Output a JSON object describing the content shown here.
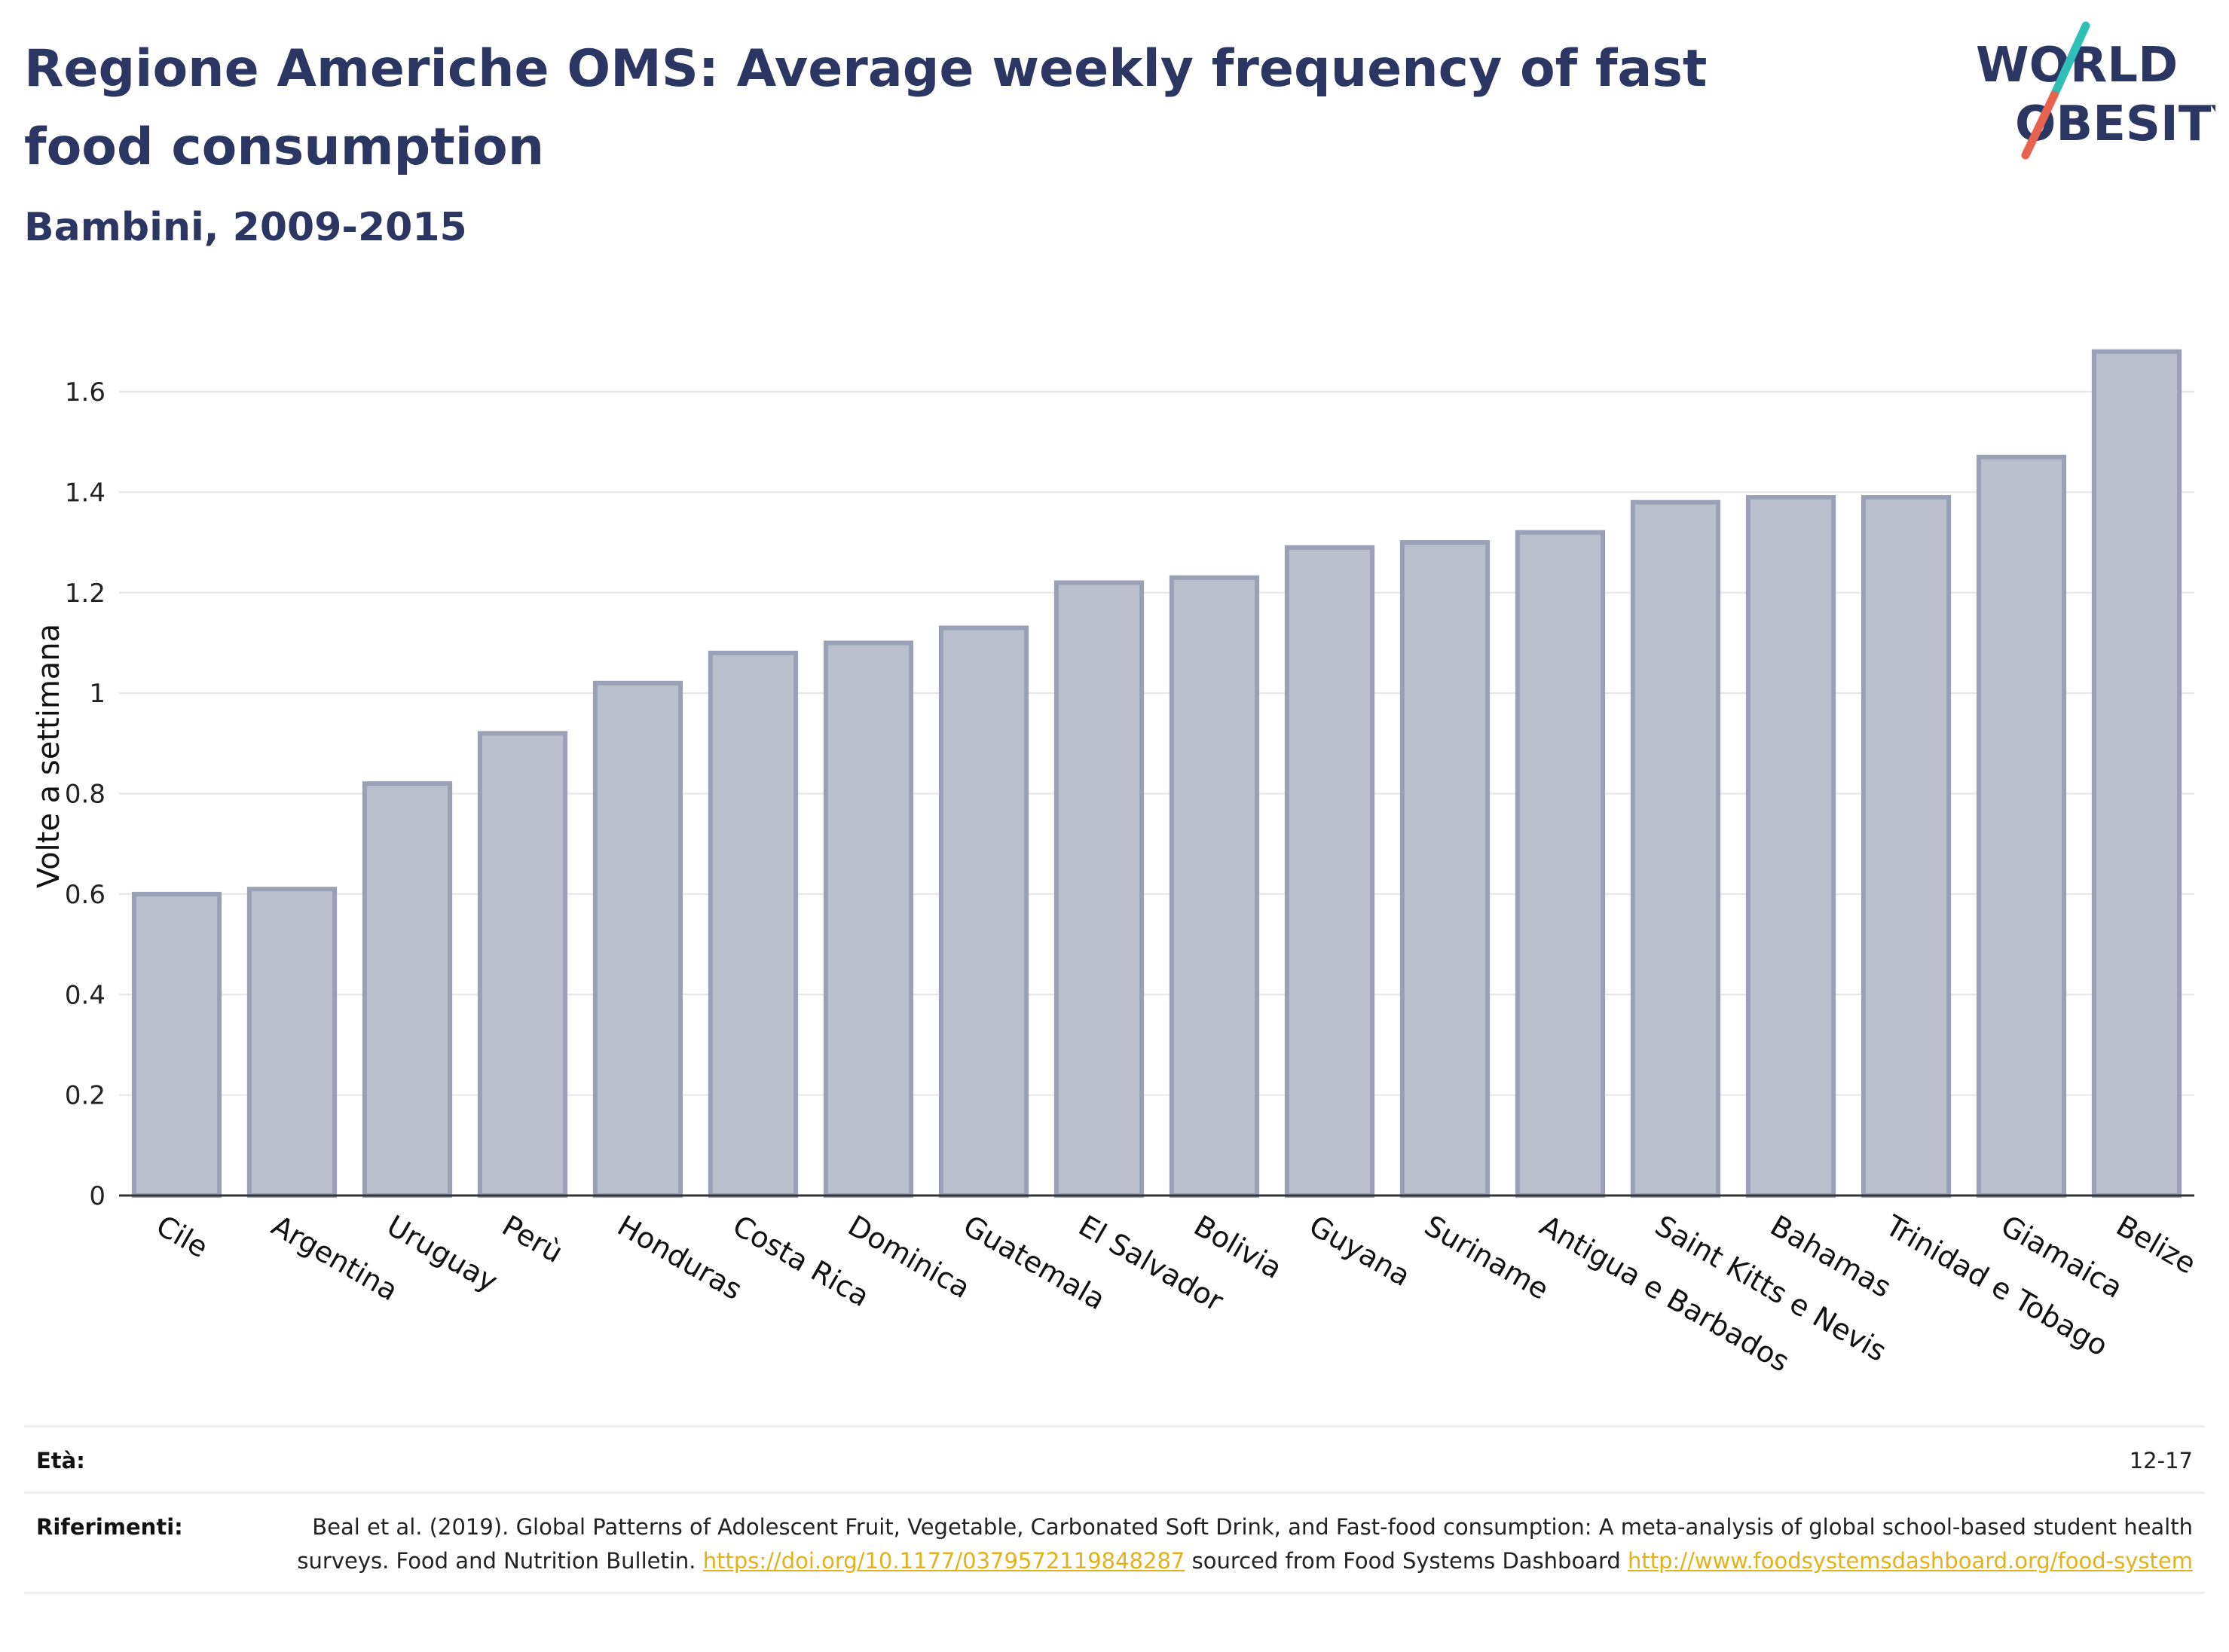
{
  "title": "Regione Americhe OMS: Average weekly frequency of fast food consumption",
  "subtitle": "Bambini, 2009-2015",
  "logo": {
    "line1": "WORLD",
    "line2": "OBESITY"
  },
  "colors": {
    "title": "#2b3762",
    "bar_fill": "#bbbfcd",
    "bar_stroke": "#9aa0b5",
    "accent_teal": "#2fbfb6",
    "accent_coral": "#e8634f",
    "link": "#e3b21a"
  },
  "chart_data": {
    "type": "bar",
    "categories": [
      "Cile",
      "Argentina",
      "Uruguay",
      "Perù",
      "Honduras",
      "Costa Rica",
      "Dominica",
      "Guatemala",
      "El Salvador",
      "Bolivia",
      "Guyana",
      "Suriname",
      "Antigua e Barbados",
      "Saint Kitts e Nevis",
      "Bahamas",
      "Trinidad e Tobago",
      "Giamaica",
      "Belize"
    ],
    "values": [
      0.6,
      0.61,
      0.82,
      0.92,
      1.02,
      1.08,
      1.1,
      1.13,
      1.22,
      1.23,
      1.29,
      1.3,
      1.32,
      1.38,
      1.39,
      1.39,
      1.47,
      1.68
    ],
    "ylabel": "Volte a settimana",
    "xlabel": "",
    "ylim": [
      0,
      1.75
    ],
    "yticks": [
      0,
      0.2,
      0.4,
      0.6,
      0.8,
      1,
      1.2,
      1.4,
      1.6
    ],
    "ytick_labels": [
      "0",
      "0.2",
      "0.4",
      "0.6",
      "0.8",
      "1",
      "1.2",
      "1.4",
      "1.6"
    ],
    "grid": true,
    "legend": "none"
  },
  "footer": {
    "age_label": "Età:",
    "age_value": "12-17",
    "ref_label": "Riferimenti:",
    "ref_text_1": "Beal et al. (2019). Global Patterns of Adolescent Fruit, Vegetable, Carbonated Soft Drink, and Fast-food consumption: A meta-analysis of global school-based student health surveys. Food and Nutrition Bulletin. ",
    "ref_link_1": "https://doi.org/10.1177/0379572119848287",
    "ref_text_2": " sourced from Food Systems Dashboard ",
    "ref_link_2": "http://www.foodsystemsdashboard.org/food-system"
  }
}
